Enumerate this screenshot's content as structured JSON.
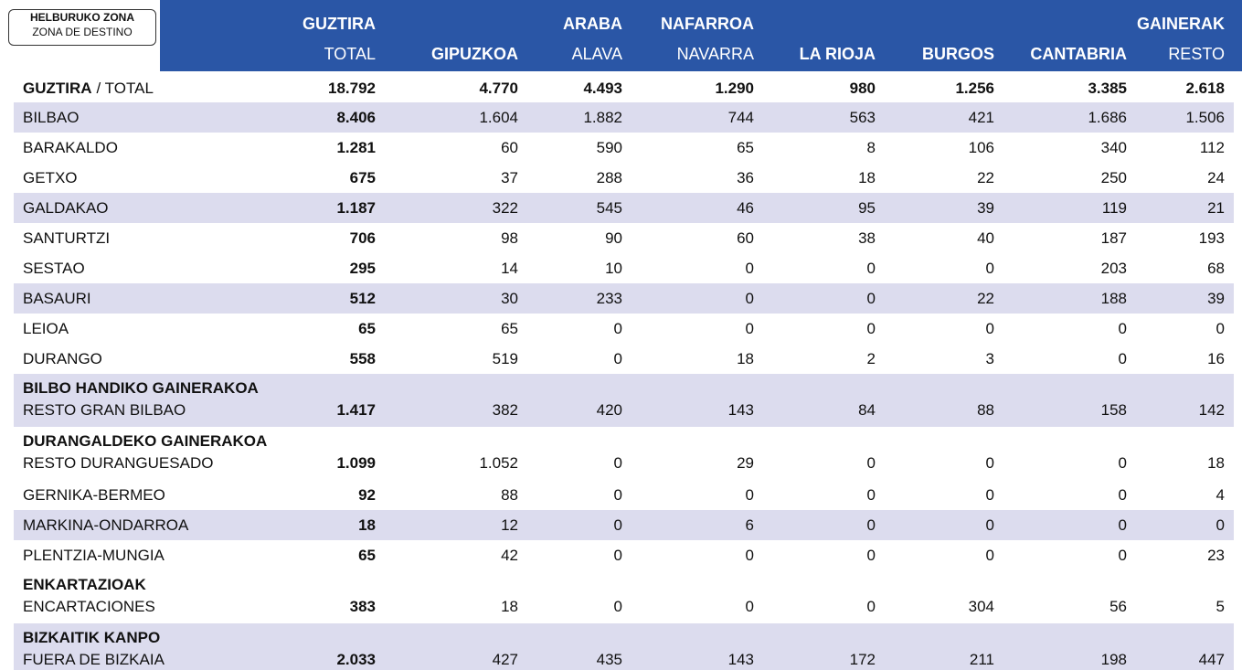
{
  "header": {
    "zone_label": [
      "HELBURUKO ZONA",
      "ZONA DE DESTINO"
    ],
    "columns": [
      {
        "top": "GUZTIRA",
        "bottom": "TOTAL"
      },
      {
        "top": null,
        "bottom": "GIPUZKOA"
      },
      {
        "top": "ARABA",
        "bottom": "ALAVA"
      },
      {
        "top": "NAFARROA",
        "bottom": "NAVARRA"
      },
      {
        "top": null,
        "bottom": "LA RIOJA"
      },
      {
        "top": null,
        "bottom": "BURGOS"
      },
      {
        "top": null,
        "bottom": "CANTABRIA"
      },
      {
        "top": "GAINERAK",
        "bottom": "RESTO"
      }
    ]
  },
  "table": {
    "total_row": {
      "label_bold": "GUZTIRA",
      "label_rest": "/ TOTAL",
      "values": [
        "18.792",
        "4.770",
        "4.493",
        "1.290",
        "980",
        "1.256",
        "3.385",
        "2.618"
      ]
    },
    "rows": [
      {
        "group": null,
        "label": "BILBAO",
        "values": [
          "8.406",
          "1.604",
          "1.882",
          "744",
          "563",
          "421",
          "1.686",
          "1.506"
        ]
      },
      {
        "group": null,
        "label": "BARAKALDO",
        "values": [
          "1.281",
          "60",
          "590",
          "65",
          "8",
          "106",
          "340",
          "112"
        ]
      },
      {
        "group": null,
        "label": "GETXO",
        "values": [
          "675",
          "37",
          "288",
          "36",
          "18",
          "22",
          "250",
          "24"
        ]
      },
      {
        "group": null,
        "label": "GALDAKAO",
        "values": [
          "1.187",
          "322",
          "545",
          "46",
          "95",
          "39",
          "119",
          "21"
        ]
      },
      {
        "group": null,
        "label": "SANTURTZI",
        "values": [
          "706",
          "98",
          "90",
          "60",
          "38",
          "40",
          "187",
          "193"
        ]
      },
      {
        "group": null,
        "label": "SESTAO",
        "values": [
          "295",
          "14",
          "10",
          "0",
          "0",
          "0",
          "203",
          "68"
        ]
      },
      {
        "group": null,
        "label": "BASAURI",
        "values": [
          "512",
          "30",
          "233",
          "0",
          "0",
          "22",
          "188",
          "39"
        ]
      },
      {
        "group": null,
        "label": "LEIOA",
        "values": [
          "65",
          "65",
          "0",
          "0",
          "0",
          "0",
          "0",
          "0"
        ]
      },
      {
        "group": null,
        "label": "DURANGO",
        "values": [
          "558",
          "519",
          "0",
          "18",
          "2",
          "3",
          "0",
          "16"
        ]
      },
      {
        "group": "BILBO HANDIKO GAINERAKOA",
        "label": "RESTO GRAN BILBAO",
        "values": [
          "1.417",
          "382",
          "420",
          "143",
          "84",
          "88",
          "158",
          "142"
        ]
      },
      {
        "group": "DURANGALDEKO GAINERAKOA",
        "label": "RESTO DURANGUESADO",
        "values": [
          "1.099",
          "1.052",
          "0",
          "29",
          "0",
          "0",
          "0",
          "18"
        ]
      },
      {
        "group": null,
        "label": "GERNIKA-BERMEO",
        "values": [
          "92",
          "88",
          "0",
          "0",
          "0",
          "0",
          "0",
          "4"
        ]
      },
      {
        "group": null,
        "label": "MARKINA-ONDARROA",
        "values": [
          "18",
          "12",
          "0",
          "6",
          "0",
          "0",
          "0",
          "0"
        ]
      },
      {
        "group": null,
        "label": "PLENTZIA-MUNGIA",
        "values": [
          "65",
          "42",
          "0",
          "0",
          "0",
          "0",
          "0",
          "23"
        ]
      },
      {
        "group": "ENKARTAZIOAK",
        "label": "ENCARTACIONES",
        "values": [
          "383",
          "18",
          "0",
          "0",
          "0",
          "304",
          "56",
          "5"
        ]
      },
      {
        "group": "BIZKAITIK KANPO",
        "label": "FUERA DE BIZKAIA",
        "values": [
          "2.033",
          "427",
          "435",
          "143",
          "172",
          "211",
          "198",
          "447"
        ]
      }
    ]
  }
}
